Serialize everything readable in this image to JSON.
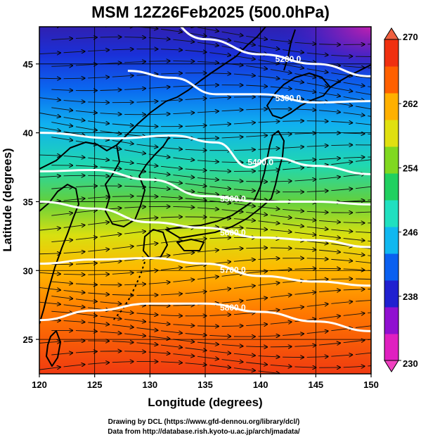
{
  "title": "MSM 12Z26Feb2025 (500.0hPa)",
  "xaxis": {
    "label": "Longitude (degrees)",
    "range": [
      120,
      150
    ],
    "ticks": [
      120,
      125,
      130,
      135,
      140,
      145,
      150
    ]
  },
  "yaxis": {
    "label": "Latitude  (degrees)",
    "range": [
      22.5,
      47.7
    ],
    "ticks": [
      25,
      30,
      35,
      40,
      45
    ]
  },
  "colorbar": {
    "min": 230,
    "max": 270,
    "ticks": [
      230,
      238,
      246,
      254,
      262,
      270
    ],
    "colors": [
      "#e020c0",
      "#9010d0",
      "#2020d0",
      "#0a60f0",
      "#10b8f0",
      "#20e0c0",
      "#20d060",
      "#80d820",
      "#e0e010",
      "#ffb000",
      "#ff6000",
      "#f03010"
    ]
  },
  "contours": [
    {
      "label": "5200.0",
      "lat_at_lon": [
        [
          130,
          49.2
        ],
        [
          135,
          46.8
        ],
        [
          140,
          45.7
        ],
        [
          145,
          45.0
        ],
        [
          150,
          44.1
        ]
      ]
    },
    {
      "label": "5300.0",
      "lat_at_lon": [
        [
          128,
          44.5
        ],
        [
          132,
          44.0
        ],
        [
          136,
          42.8
        ],
        [
          140,
          42.8
        ],
        [
          145,
          42.2
        ],
        [
          150,
          42.3
        ]
      ]
    },
    {
      "label": "5400.0",
      "lat_at_lon": [
        [
          120,
          40.0
        ],
        [
          127,
          39.6
        ],
        [
          132,
          39.8
        ],
        [
          136,
          39.3
        ],
        [
          139,
          37.5
        ],
        [
          141,
          38.2
        ],
        [
          145,
          37.6
        ],
        [
          150,
          37.0
        ]
      ]
    },
    {
      "label": "5500.0",
      "lat_at_lon": [
        [
          120,
          37.2
        ],
        [
          125,
          37.3
        ],
        [
          130,
          36.6
        ],
        [
          135,
          35.4
        ],
        [
          140,
          35.0
        ],
        [
          145,
          35.0
        ],
        [
          150,
          34.8
        ]
      ]
    },
    {
      "label": "5600.0",
      "lat_at_lon": [
        [
          120,
          35.0
        ],
        [
          125,
          34.5
        ],
        [
          130,
          33.5
        ],
        [
          135,
          33.1
        ],
        [
          140,
          32.4
        ],
        [
          145,
          32.2
        ],
        [
          150,
          31.7
        ]
      ]
    },
    {
      "label": "5700.0",
      "lat_at_lon": [
        [
          120,
          30.5
        ],
        [
          125,
          30.8
        ],
        [
          130,
          30.9
        ],
        [
          135,
          30.5
        ],
        [
          140,
          29.6
        ],
        [
          145,
          29.2
        ],
        [
          150,
          28.9
        ]
      ]
    },
    {
      "label": "5800.0",
      "lat_at_lon": [
        [
          120,
          26.4
        ],
        [
          125,
          27.1
        ],
        [
          130,
          27.6
        ],
        [
          135,
          27.6
        ],
        [
          140,
          27.0
        ],
        [
          145,
          26.3
        ],
        [
          150,
          25.6
        ]
      ]
    }
  ],
  "credits": {
    "line1": "Drawing by DCL (https://www.gfd-dennou.org/library/dcl/)",
    "line2": "Data from http://database.rish.kyoto-u.ac.jp/arch/jmadata/"
  }
}
